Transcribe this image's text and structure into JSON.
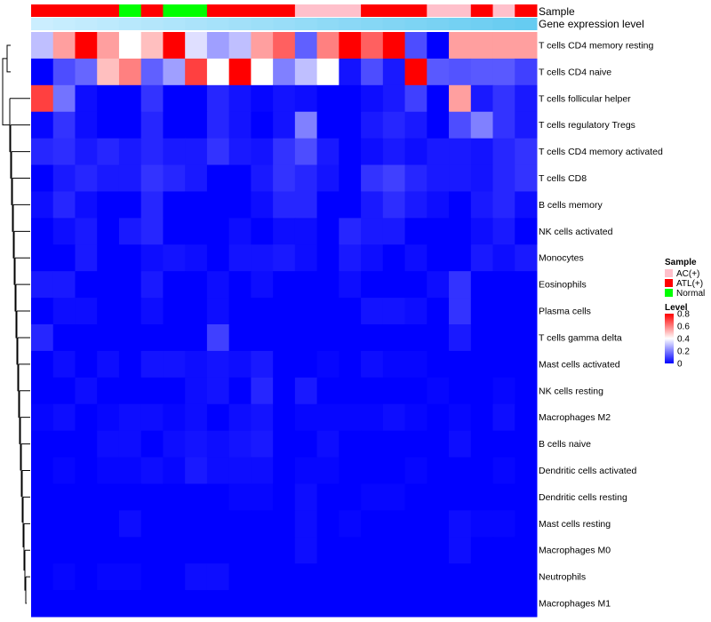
{
  "chart_data": {
    "type": "heatmap",
    "title": "",
    "xlabel": "",
    "ylabel": "",
    "annotation_tracks": [
      {
        "label": "Sample",
        "values": [
          "ATL(+)",
          "ATL(+)",
          "ATL(+)",
          "ATL(+)",
          "Normal",
          "ATL(+)",
          "Normal",
          "Normal",
          "ATL(+)",
          "ATL(+)",
          "ATL(+)",
          "ATL(+)",
          "AC(+)",
          "AC(+)",
          "AC(+)",
          "ATL(+)",
          "ATL(+)",
          "ATL(+)",
          "AC(+)",
          "AC(+)",
          "ATL(+)",
          "AC(+)",
          "ATL(+)"
        ]
      },
      {
        "label": "Gene expression level",
        "values": [
          0.02,
          0.06,
          0.1,
          0.14,
          0.18,
          0.22,
          0.26,
          0.3,
          0.34,
          0.38,
          0.42,
          0.46,
          0.5,
          0.54,
          0.58,
          0.62,
          0.66,
          0.7,
          0.74,
          0.78,
          0.82,
          0.86,
          0.9
        ]
      }
    ],
    "rows": [
      {
        "name": "T cells CD4 memory resting",
        "values": [
          0.3,
          0.55,
          0.8,
          0.55,
          0.4,
          0.5,
          0.8,
          0.35,
          0.25,
          0.3,
          0.55,
          0.65,
          0.15,
          0.6,
          0.8,
          0.65,
          0.8,
          0.12,
          0.0,
          0.55,
          0.55,
          0.55,
          0.55
        ]
      },
      {
        "name": "T cells CD4 naive",
        "values": [
          0.0,
          0.12,
          0.16,
          0.5,
          0.6,
          0.15,
          0.25,
          0.7,
          0.4,
          0.8,
          0.4,
          0.2,
          0.3,
          0.4,
          0.03,
          0.12,
          0.04,
          0.8,
          0.14,
          0.13,
          0.14,
          0.14,
          0.1
        ]
      },
      {
        "name": "T cells follicular helper",
        "values": [
          0.7,
          0.18,
          0.02,
          0.0,
          0.0,
          0.08,
          0.0,
          0.0,
          0.06,
          0.03,
          0.01,
          0.03,
          0.02,
          0.0,
          0.0,
          0.02,
          0.04,
          0.1,
          0.0,
          0.55,
          0.04,
          0.08,
          0.04
        ]
      },
      {
        "name": "T cells regulatory  Tregs",
        "values": [
          0.01,
          0.08,
          0.02,
          0.0,
          0.0,
          0.06,
          0.0,
          0.0,
          0.06,
          0.03,
          0.0,
          0.03,
          0.2,
          0.0,
          0.0,
          0.04,
          0.06,
          0.04,
          0.0,
          0.12,
          0.2,
          0.08,
          0.04
        ]
      },
      {
        "name": "T cells CD4 memory activated",
        "values": [
          0.06,
          0.07,
          0.04,
          0.06,
          0.04,
          0.06,
          0.04,
          0.04,
          0.08,
          0.04,
          0.03,
          0.08,
          0.12,
          0.04,
          0.0,
          0.02,
          0.04,
          0.02,
          0.04,
          0.04,
          0.03,
          0.06,
          0.08
        ]
      },
      {
        "name": "T cells CD8",
        "values": [
          0.0,
          0.04,
          0.06,
          0.04,
          0.04,
          0.08,
          0.06,
          0.04,
          0.0,
          0.0,
          0.04,
          0.08,
          0.06,
          0.03,
          0.0,
          0.08,
          0.1,
          0.06,
          0.04,
          0.04,
          0.03,
          0.06,
          0.08
        ]
      },
      {
        "name": "B cells memory",
        "values": [
          0.02,
          0.06,
          0.02,
          0.0,
          0.0,
          0.06,
          0.0,
          0.0,
          0.0,
          0.0,
          0.02,
          0.06,
          0.06,
          0.0,
          0.0,
          0.04,
          0.07,
          0.04,
          0.02,
          0.0,
          0.04,
          0.06,
          0.02
        ]
      },
      {
        "name": "NK cells activated",
        "values": [
          0.0,
          0.02,
          0.04,
          0.0,
          0.04,
          0.06,
          0.0,
          0.0,
          0.0,
          0.02,
          0.0,
          0.02,
          0.02,
          0.0,
          0.06,
          0.04,
          0.04,
          0.0,
          0.0,
          0.0,
          0.02,
          0.04,
          0.0
        ]
      },
      {
        "name": "Monocytes",
        "values": [
          0.0,
          0.0,
          0.04,
          0.0,
          0.0,
          0.02,
          0.03,
          0.02,
          0.0,
          0.03,
          0.03,
          0.04,
          0.02,
          0.0,
          0.04,
          0.02,
          0.0,
          0.02,
          0.0,
          0.0,
          0.04,
          0.02,
          0.04
        ]
      },
      {
        "name": "Eosinophils",
        "values": [
          0.04,
          0.04,
          0.0,
          0.0,
          0.0,
          0.04,
          0.0,
          0.0,
          0.02,
          0.0,
          0.02,
          0.0,
          0.0,
          0.0,
          0.02,
          0.0,
          0.0,
          0.0,
          0.02,
          0.08,
          0.0,
          0.0,
          0.0
        ]
      },
      {
        "name": "Plasma cells",
        "values": [
          0.0,
          0.02,
          0.02,
          0.0,
          0.0,
          0.02,
          0.0,
          0.0,
          0.02,
          0.0,
          0.0,
          0.0,
          0.0,
          0.0,
          0.0,
          0.03,
          0.03,
          0.02,
          0.0,
          0.08,
          0.0,
          0.0,
          0.0
        ]
      },
      {
        "name": "T cells gamma delta",
        "values": [
          0.06,
          0.0,
          0.0,
          0.0,
          0.0,
          0.0,
          0.0,
          0.0,
          0.1,
          0.0,
          0.0,
          0.0,
          0.0,
          0.0,
          0.0,
          0.0,
          0.0,
          0.0,
          0.0,
          0.04,
          0.0,
          0.0,
          0.0
        ]
      },
      {
        "name": "Mast cells activated",
        "values": [
          0.0,
          0.02,
          0.0,
          0.02,
          0.0,
          0.03,
          0.03,
          0.02,
          0.03,
          0.02,
          0.04,
          0.0,
          0.0,
          0.01,
          0.0,
          0.02,
          0.01,
          0.01,
          0.0,
          0.0,
          0.0,
          0.0,
          0.0
        ]
      },
      {
        "name": "NK cells resting",
        "values": [
          0.0,
          0.0,
          0.02,
          0.0,
          0.0,
          0.0,
          0.0,
          0.02,
          0.03,
          0.0,
          0.06,
          0.0,
          0.04,
          0.0,
          0.0,
          0.0,
          0.0,
          0.0,
          0.01,
          0.0,
          0.0,
          0.01,
          0.0
        ]
      },
      {
        "name": "Macrophages M2",
        "values": [
          0.01,
          0.02,
          0.0,
          0.01,
          0.02,
          0.02,
          0.01,
          0.02,
          0.0,
          0.02,
          0.03,
          0.0,
          0.01,
          0.01,
          0.01,
          0.01,
          0.02,
          0.01,
          0.0,
          0.01,
          0.0,
          0.02,
          0.0
        ]
      },
      {
        "name": "B cells naive",
        "values": [
          0.0,
          0.0,
          0.0,
          0.02,
          0.02,
          0.0,
          0.02,
          0.03,
          0.02,
          0.03,
          0.04,
          0.0,
          0.0,
          0.02,
          0.0,
          0.0,
          0.0,
          0.0,
          0.0,
          0.02,
          0.0,
          0.0,
          0.0
        ]
      },
      {
        "name": "Dendritic cells activated",
        "values": [
          0.0,
          0.01,
          0.0,
          0.01,
          0.01,
          0.02,
          0.01,
          0.04,
          0.02,
          0.02,
          0.02,
          0.0,
          0.01,
          0.01,
          0.0,
          0.0,
          0.0,
          0.01,
          0.0,
          0.0,
          0.0,
          0.01,
          0.0
        ]
      },
      {
        "name": "Dendritic cells resting",
        "values": [
          0.0,
          0.0,
          0.0,
          0.0,
          0.0,
          0.0,
          0.0,
          0.0,
          0.0,
          0.01,
          0.01,
          0.0,
          0.02,
          0.0,
          0.0,
          0.01,
          0.01,
          0.0,
          0.0,
          0.0,
          0.0,
          0.0,
          0.0
        ]
      },
      {
        "name": "Mast cells resting",
        "values": [
          0.0,
          0.0,
          0.0,
          0.0,
          0.02,
          0.0,
          0.0,
          0.0,
          0.0,
          0.0,
          0.0,
          0.0,
          0.02,
          0.0,
          0.01,
          0.0,
          0.0,
          0.0,
          0.0,
          0.02,
          0.01,
          0.01,
          0.0
        ]
      },
      {
        "name": "Macrophages M0",
        "values": [
          0.0,
          0.0,
          0.0,
          0.0,
          0.0,
          0.0,
          0.0,
          0.0,
          0.0,
          0.0,
          0.0,
          0.0,
          0.02,
          0.0,
          0.0,
          0.0,
          0.0,
          0.0,
          0.0,
          0.02,
          0.0,
          0.0,
          0.0
        ]
      },
      {
        "name": "Neutrophils",
        "values": [
          0.0,
          0.01,
          0.0,
          0.01,
          0.01,
          0.0,
          0.0,
          0.02,
          0.02,
          0.0,
          0.0,
          0.0,
          0.0,
          0.0,
          0.0,
          0.0,
          0.0,
          0.0,
          0.0,
          0.0,
          0.0,
          0.0,
          0.0
        ]
      },
      {
        "name": "Macrophages M1",
        "values": [
          0.0,
          0.0,
          0.0,
          0.0,
          0.0,
          0.0,
          0.0,
          0.0,
          0.0,
          0.0,
          0.0,
          0.0,
          0.0,
          0.0,
          0.0,
          0.0,
          0.0,
          0.0,
          0.0,
          0.0,
          0.0,
          0.0,
          0.0
        ]
      }
    ],
    "legends": {
      "sample": {
        "title": "Sample",
        "items": [
          {
            "label": "AC(+)",
            "color": "#ffc0cb"
          },
          {
            "label": "ATL(+)",
            "color": "#ff0000"
          },
          {
            "label": "Normal",
            "color": "#00ff00"
          }
        ]
      },
      "level": {
        "title": "Level",
        "range": [
          0,
          0.8
        ],
        "ticks": [
          "0.8",
          "0.6",
          "0.4",
          "0.2",
          "0"
        ],
        "tick_values": [
          0.8,
          0.6,
          0.4,
          0.2,
          0
        ],
        "colors": [
          "#0000ff",
          "#ffffff",
          "#ff0000"
        ]
      }
    },
    "expression_colors": [
      "#cdefff",
      "#5bc8ef"
    ],
    "grid": false
  }
}
